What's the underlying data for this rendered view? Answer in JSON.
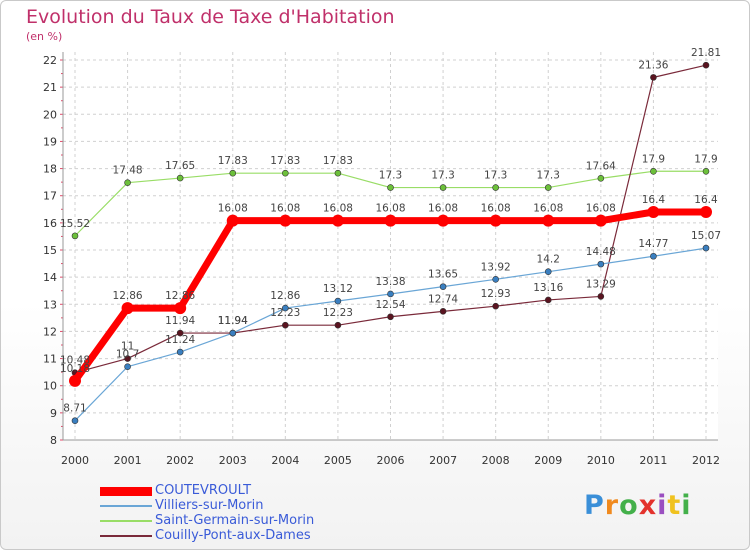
{
  "chart_data": {
    "type": "line",
    "title": "Evolution du Taux de Taxe d'Habitation",
    "ylabel": "(en %)",
    "xlabel": "",
    "x": [
      "2000",
      "2001",
      "2002",
      "2003",
      "2004",
      "2005",
      "2006",
      "2007",
      "2008",
      "2009",
      "2010",
      "2011",
      "2012"
    ],
    "yticks": [
      "8",
      "9",
      "10",
      "11",
      "12",
      "13",
      "14",
      "15",
      "16",
      "17",
      "18",
      "19",
      "20",
      "21",
      "22"
    ],
    "ylim": [
      8,
      22
    ],
    "grid": true,
    "legend_position": "bottom-left",
    "series": [
      {
        "name": "COUTEVROULT",
        "color": "#ff0000",
        "values": [
          10.18,
          12.86,
          12.86,
          16.08,
          16.08,
          16.08,
          16.08,
          16.08,
          16.08,
          16.08,
          16.08,
          16.4,
          16.4
        ],
        "labels": [
          "10.18",
          "12.86",
          "12.86",
          "16.08",
          "16.08",
          "16.08",
          "16.08",
          "16.08",
          "16.08",
          "16.08",
          "16.08",
          "16.4",
          "16.4"
        ]
      },
      {
        "name": "Villiers-sur-Morin",
        "color": "#6aa6d6",
        "values": [
          8.71,
          10.7,
          11.24,
          11.94,
          12.86,
          13.12,
          13.38,
          13.65,
          13.92,
          14.2,
          14.48,
          14.77,
          15.07
        ],
        "labels": [
          "8.71",
          "10.7",
          "11.24",
          "11.94",
          "12.86",
          "13.12",
          "13.38",
          "13.65",
          "13.92",
          "14.2",
          "14.48",
          "14.77",
          "15.07"
        ]
      },
      {
        "name": "Saint-Germain-sur-Morin",
        "color": "#99dd66",
        "values": [
          15.52,
          17.48,
          17.65,
          17.83,
          17.83,
          17.83,
          17.3,
          17.3,
          17.3,
          17.3,
          17.64,
          17.9,
          17.9
        ],
        "labels": [
          "15.52",
          "17.48",
          "17.65",
          "17.83",
          "17.83",
          "17.83",
          "17.3",
          "17.3",
          "17.3",
          "17.3",
          "17.64",
          "17.9",
          "17.9"
        ]
      },
      {
        "name": "Couilly-Pont-aux-Dames",
        "color": "#7a2a3a",
        "values": [
          10.48,
          11,
          11.94,
          11.94,
          12.23,
          12.23,
          12.54,
          12.74,
          12.93,
          13.16,
          13.29,
          21.36,
          21.81
        ],
        "labels": [
          "10.48",
          "11",
          "11.94",
          "11.94",
          "12.23",
          "12.23",
          "12.54",
          "12.74",
          "12.93",
          "13.16",
          "13.29",
          "21.36",
          "21.81"
        ]
      }
    ]
  },
  "branding": {
    "logo_letters": [
      "P",
      "r",
      "o",
      "x",
      "i",
      "t",
      "i"
    ]
  }
}
